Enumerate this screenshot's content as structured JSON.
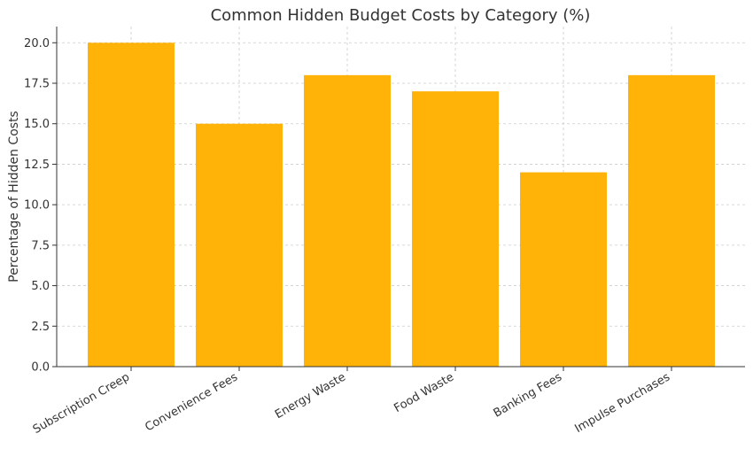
{
  "chart_data": {
    "type": "bar",
    "title": "Common Hidden Budget Costs by Category (%)",
    "xlabel": "",
    "ylabel": "Percentage of Hidden Costs",
    "categories": [
      "Subscription Creep",
      "Convenience Fees",
      "Energy Waste",
      "Food Waste",
      "Banking Fees",
      "Impulse Purchases"
    ],
    "values": [
      20,
      15,
      18,
      17,
      12,
      18
    ],
    "ylim": [
      0,
      21
    ],
    "yticks": [
      "0.0",
      "2.5",
      "5.0",
      "7.5",
      "10.0",
      "12.5",
      "15.0",
      "17.5",
      "20.0"
    ],
    "grid": true,
    "bar_color": "#FFB000"
  }
}
